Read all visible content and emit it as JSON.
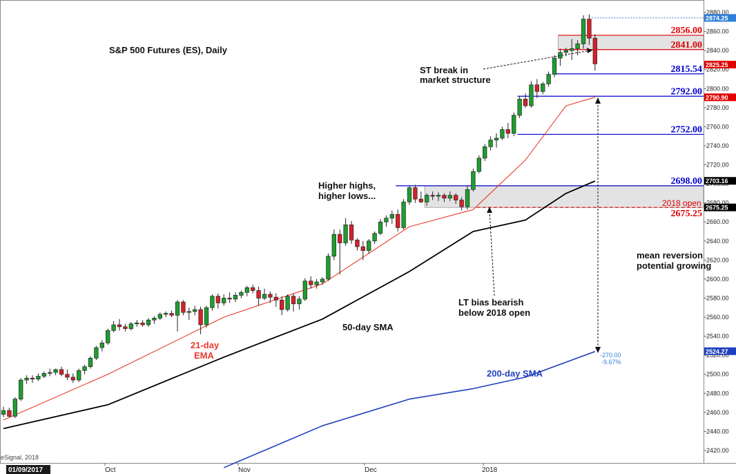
{
  "chart_data": {
    "type": "candlestick",
    "title": "S&P 500 Futures (ES), Daily",
    "source": "eSignal, 2018",
    "ylim": [
      2410,
      2885
    ],
    "y_ticks": [
      2420,
      2440,
      2460,
      2480,
      2500,
      2520,
      2540,
      2560,
      2580,
      2600,
      2620,
      2640,
      2660,
      2680,
      2700,
      2720,
      2740,
      2760,
      2780,
      2800,
      2820,
      2840,
      2860,
      2880
    ],
    "x_labels": {
      "first": "01/09/2017",
      "oct": "Oct",
      "nov": "Nov",
      "dec": "Dec",
      "y2018": "2018"
    },
    "ohlc": [
      [
        2458,
        2466,
        2455,
        2462
      ],
      [
        2462,
        2465,
        2455,
        2456
      ],
      [
        2456,
        2476,
        2454,
        2474
      ],
      [
        2474,
        2496,
        2472,
        2494
      ],
      [
        2494,
        2499,
        2490,
        2496
      ],
      [
        2496,
        2499,
        2491,
        2495
      ],
      [
        2495,
        2501,
        2493,
        2498
      ],
      [
        2498,
        2503,
        2496,
        2501
      ],
      [
        2501,
        2506,
        2498,
        2502
      ],
      [
        2502,
        2506,
        2499,
        2505
      ],
      [
        2505,
        2508,
        2498,
        2500
      ],
      [
        2500,
        2505,
        2494,
        2497
      ],
      [
        2497,
        2501,
        2491,
        2494
      ],
      [
        2494,
        2506,
        2492,
        2504
      ],
      [
        2504,
        2510,
        2500,
        2508
      ],
      [
        2508,
        2519,
        2506,
        2517
      ],
      [
        2517,
        2530,
        2515,
        2528
      ],
      [
        2528,
        2536,
        2524,
        2533
      ],
      [
        2533,
        2548,
        2531,
        2546
      ],
      [
        2546,
        2556,
        2544,
        2552
      ],
      [
        2552,
        2558,
        2546,
        2550
      ],
      [
        2550,
        2553,
        2545,
        2548
      ],
      [
        2548,
        2555,
        2546,
        2553
      ],
      [
        2553,
        2557,
        2550,
        2554
      ],
      [
        2554,
        2557,
        2550,
        2552
      ],
      [
        2552,
        2559,
        2550,
        2557
      ],
      [
        2557,
        2561,
        2553,
        2559
      ],
      [
        2559,
        2565,
        2557,
        2563
      ],
      [
        2563,
        2566,
        2560,
        2564
      ],
      [
        2564,
        2567,
        2560,
        2562
      ],
      [
        2562,
        2578,
        2545,
        2576
      ],
      [
        2576,
        2578,
        2562,
        2565
      ],
      [
        2565,
        2570,
        2557,
        2566
      ],
      [
        2566,
        2572,
        2562,
        2568
      ],
      [
        2568,
        2571,
        2542,
        2552
      ],
      [
        2552,
        2572,
        2549,
        2570
      ],
      [
        2570,
        2584,
        2567,
        2582
      ],
      [
        2582,
        2585,
        2569,
        2575
      ],
      [
        2575,
        2584,
        2572,
        2580
      ],
      [
        2580,
        2586,
        2575,
        2579
      ],
      [
        2579,
        2586,
        2576,
        2583
      ],
      [
        2583,
        2588,
        2580,
        2586
      ],
      [
        2586,
        2593,
        2582,
        2591
      ],
      [
        2591,
        2594,
        2585,
        2588
      ],
      [
        2588,
        2592,
        2572,
        2580
      ],
      [
        2580,
        2590,
        2578,
        2584
      ],
      [
        2584,
        2587,
        2575,
        2581
      ],
      [
        2581,
        2585,
        2571,
        2578
      ],
      [
        2578,
        2582,
        2562,
        2568
      ],
      [
        2568,
        2584,
        2566,
        2582
      ],
      [
        2582,
        2585,
        2566,
        2574
      ],
      [
        2574,
        2582,
        2568,
        2579
      ],
      [
        2579,
        2601,
        2577,
        2598
      ],
      [
        2598,
        2603,
        2590,
        2594
      ],
      [
        2594,
        2600,
        2590,
        2597
      ],
      [
        2597,
        2602,
        2594,
        2600
      ],
      [
        2600,
        2627,
        2598,
        2624
      ],
      [
        2624,
        2652,
        2620,
        2647
      ],
      [
        2647,
        2652,
        2605,
        2638
      ],
      [
        2638,
        2664,
        2635,
        2657
      ],
      [
        2657,
        2661,
        2637,
        2641
      ],
      [
        2641,
        2643,
        2630,
        2634
      ],
      [
        2634,
        2640,
        2620,
        2630
      ],
      [
        2630,
        2642,
        2627,
        2640
      ],
      [
        2640,
        2650,
        2637,
        2648
      ],
      [
        2648,
        2663,
        2646,
        2660
      ],
      [
        2660,
        2667,
        2655,
        2664
      ],
      [
        2664,
        2672,
        2658,
        2668
      ],
      [
        2668,
        2673,
        2650,
        2654
      ],
      [
        2654,
        2684,
        2652,
        2681
      ],
      [
        2681,
        2698,
        2678,
        2696
      ],
      [
        2696,
        2699,
        2680,
        2684
      ],
      [
        2684,
        2692,
        2680,
        2681
      ],
      [
        2681,
        2690,
        2677,
        2688
      ],
      [
        2688,
        2692,
        2683,
        2687
      ],
      [
        2687,
        2691,
        2682,
        2688
      ],
      [
        2688,
        2690,
        2681,
        2685
      ],
      [
        2685,
        2692,
        2682,
        2688
      ],
      [
        2688,
        2690,
        2679,
        2683
      ],
      [
        2683,
        2686,
        2672,
        2676
      ],
      [
        2676,
        2698,
        2673,
        2694
      ],
      [
        2694,
        2716,
        2692,
        2713
      ],
      [
        2713,
        2730,
        2711,
        2727
      ],
      [
        2727,
        2742,
        2724,
        2739
      ],
      [
        2739,
        2750,
        2735,
        2746
      ],
      [
        2746,
        2753,
        2738,
        2748
      ],
      [
        2748,
        2760,
        2746,
        2757
      ],
      [
        2757,
        2764,
        2748,
        2753
      ],
      [
        2753,
        2775,
        2750,
        2772
      ],
      [
        2772,
        2792,
        2769,
        2789
      ],
      [
        2789,
        2795,
        2780,
        2782
      ],
      [
        2782,
        2808,
        2780,
        2804
      ],
      [
        2804,
        2810,
        2790,
        2797
      ],
      [
        2797,
        2807,
        2794,
        2805
      ],
      [
        2805,
        2818,
        2802,
        2815
      ],
      [
        2815,
        2835,
        2812,
        2832
      ],
      [
        2832,
        2842,
        2824,
        2838
      ],
      [
        2838,
        2843,
        2834,
        2840
      ],
      [
        2840,
        2852,
        2830,
        2842
      ],
      [
        2842,
        2851,
        2835,
        2847
      ],
      [
        2847,
        2877,
        2842,
        2873
      ],
      [
        2873,
        2878,
        2846,
        2853
      ],
      [
        2853,
        2857,
        2819,
        2826
      ]
    ],
    "series": [
      {
        "name": "21-day EMA",
        "color": "#e8392b",
        "x": [
          0,
          18,
          38,
          55,
          70,
          81,
          90,
          97,
          102
        ],
        "values": [
          2452,
          2500,
          2560,
          2595,
          2655,
          2673,
          2725,
          2782,
          2791
        ]
      },
      {
        "name": "50-day SMA",
        "color": "#000000",
        "x": [
          0,
          18,
          38,
          55,
          70,
          81,
          90,
          97,
          102
        ],
        "values": [
          2443,
          2468,
          2518,
          2558,
          2608,
          2650,
          2662,
          2690,
          2703
        ]
      },
      {
        "name": "200-day SMA",
        "color": "#1f3fbf",
        "x": [
          38,
          55,
          70,
          81,
          90,
          102
        ],
        "values": [
          2402,
          2446,
          2474,
          2485,
          2497,
          2524
        ]
      }
    ],
    "levels": [
      {
        "value": 2856.0,
        "label": "2856.00",
        "color": "#e00000",
        "style": "solid",
        "x_start": 96
      },
      {
        "value": 2841.0,
        "label": "2841.00",
        "color": "#e00000",
        "style": "solid",
        "x_start": 96
      },
      {
        "value": 2815.54,
        "label": "2815.54",
        "color": "#0000cc",
        "style": "solid",
        "x_start": 95
      },
      {
        "value": 2792.0,
        "label": "2792.00",
        "color": "#0000cc",
        "style": "solid",
        "x_start": 89
      },
      {
        "value": 2752.0,
        "label": "2752.00",
        "color": "#0000cc",
        "style": "solid",
        "x_start": 89
      },
      {
        "value": 2698.0,
        "label": "2698.00",
        "color": "#0000cc",
        "style": "solid",
        "x_start": 68
      },
      {
        "value": 2675.25,
        "label": "2675.25",
        "color": "#e00000",
        "style": "dashed",
        "x_start": 82
      }
    ],
    "zones": [
      {
        "from": 2841.0,
        "to": 2856.0,
        "x_start": 96
      },
      {
        "from": 2675.25,
        "to": 2698.0,
        "x_start": 73
      }
    ],
    "price_tags": [
      {
        "value": 2874.25,
        "label": "2874.25",
        "color": "#2f7fd8"
      },
      {
        "value": 2825.25,
        "label": "2825.25",
        "color": "#e00000"
      },
      {
        "value": 2790.9,
        "label": "2790.90",
        "color": "#e00000"
      },
      {
        "value": 2703.16,
        "label": "2703.16",
        "color": "#000000"
      },
      {
        "value": 2675.25,
        "label": "2675.25",
        "color": "#000000"
      },
      {
        "value": 2524.27,
        "label": "2524.27",
        "color": "#1f3fbf"
      }
    ],
    "annotations": {
      "open_2018": "2018 open",
      "st_break": [
        "ST break in",
        "market structure"
      ],
      "higher_highs": [
        "Higher highs,",
        "higher lows..."
      ],
      "lt_bias": [
        "LT bias bearish",
        "below 2018 open"
      ],
      "mean_reversion": [
        "mean reversion",
        "potential growing"
      ],
      "ema_label": [
        "21-day",
        "EMA"
      ],
      "sma50_label": "50-day SMA",
      "sma200_label": "200-day SMA",
      "distance": [
        "-270.00",
        "-9.67%"
      ]
    }
  }
}
